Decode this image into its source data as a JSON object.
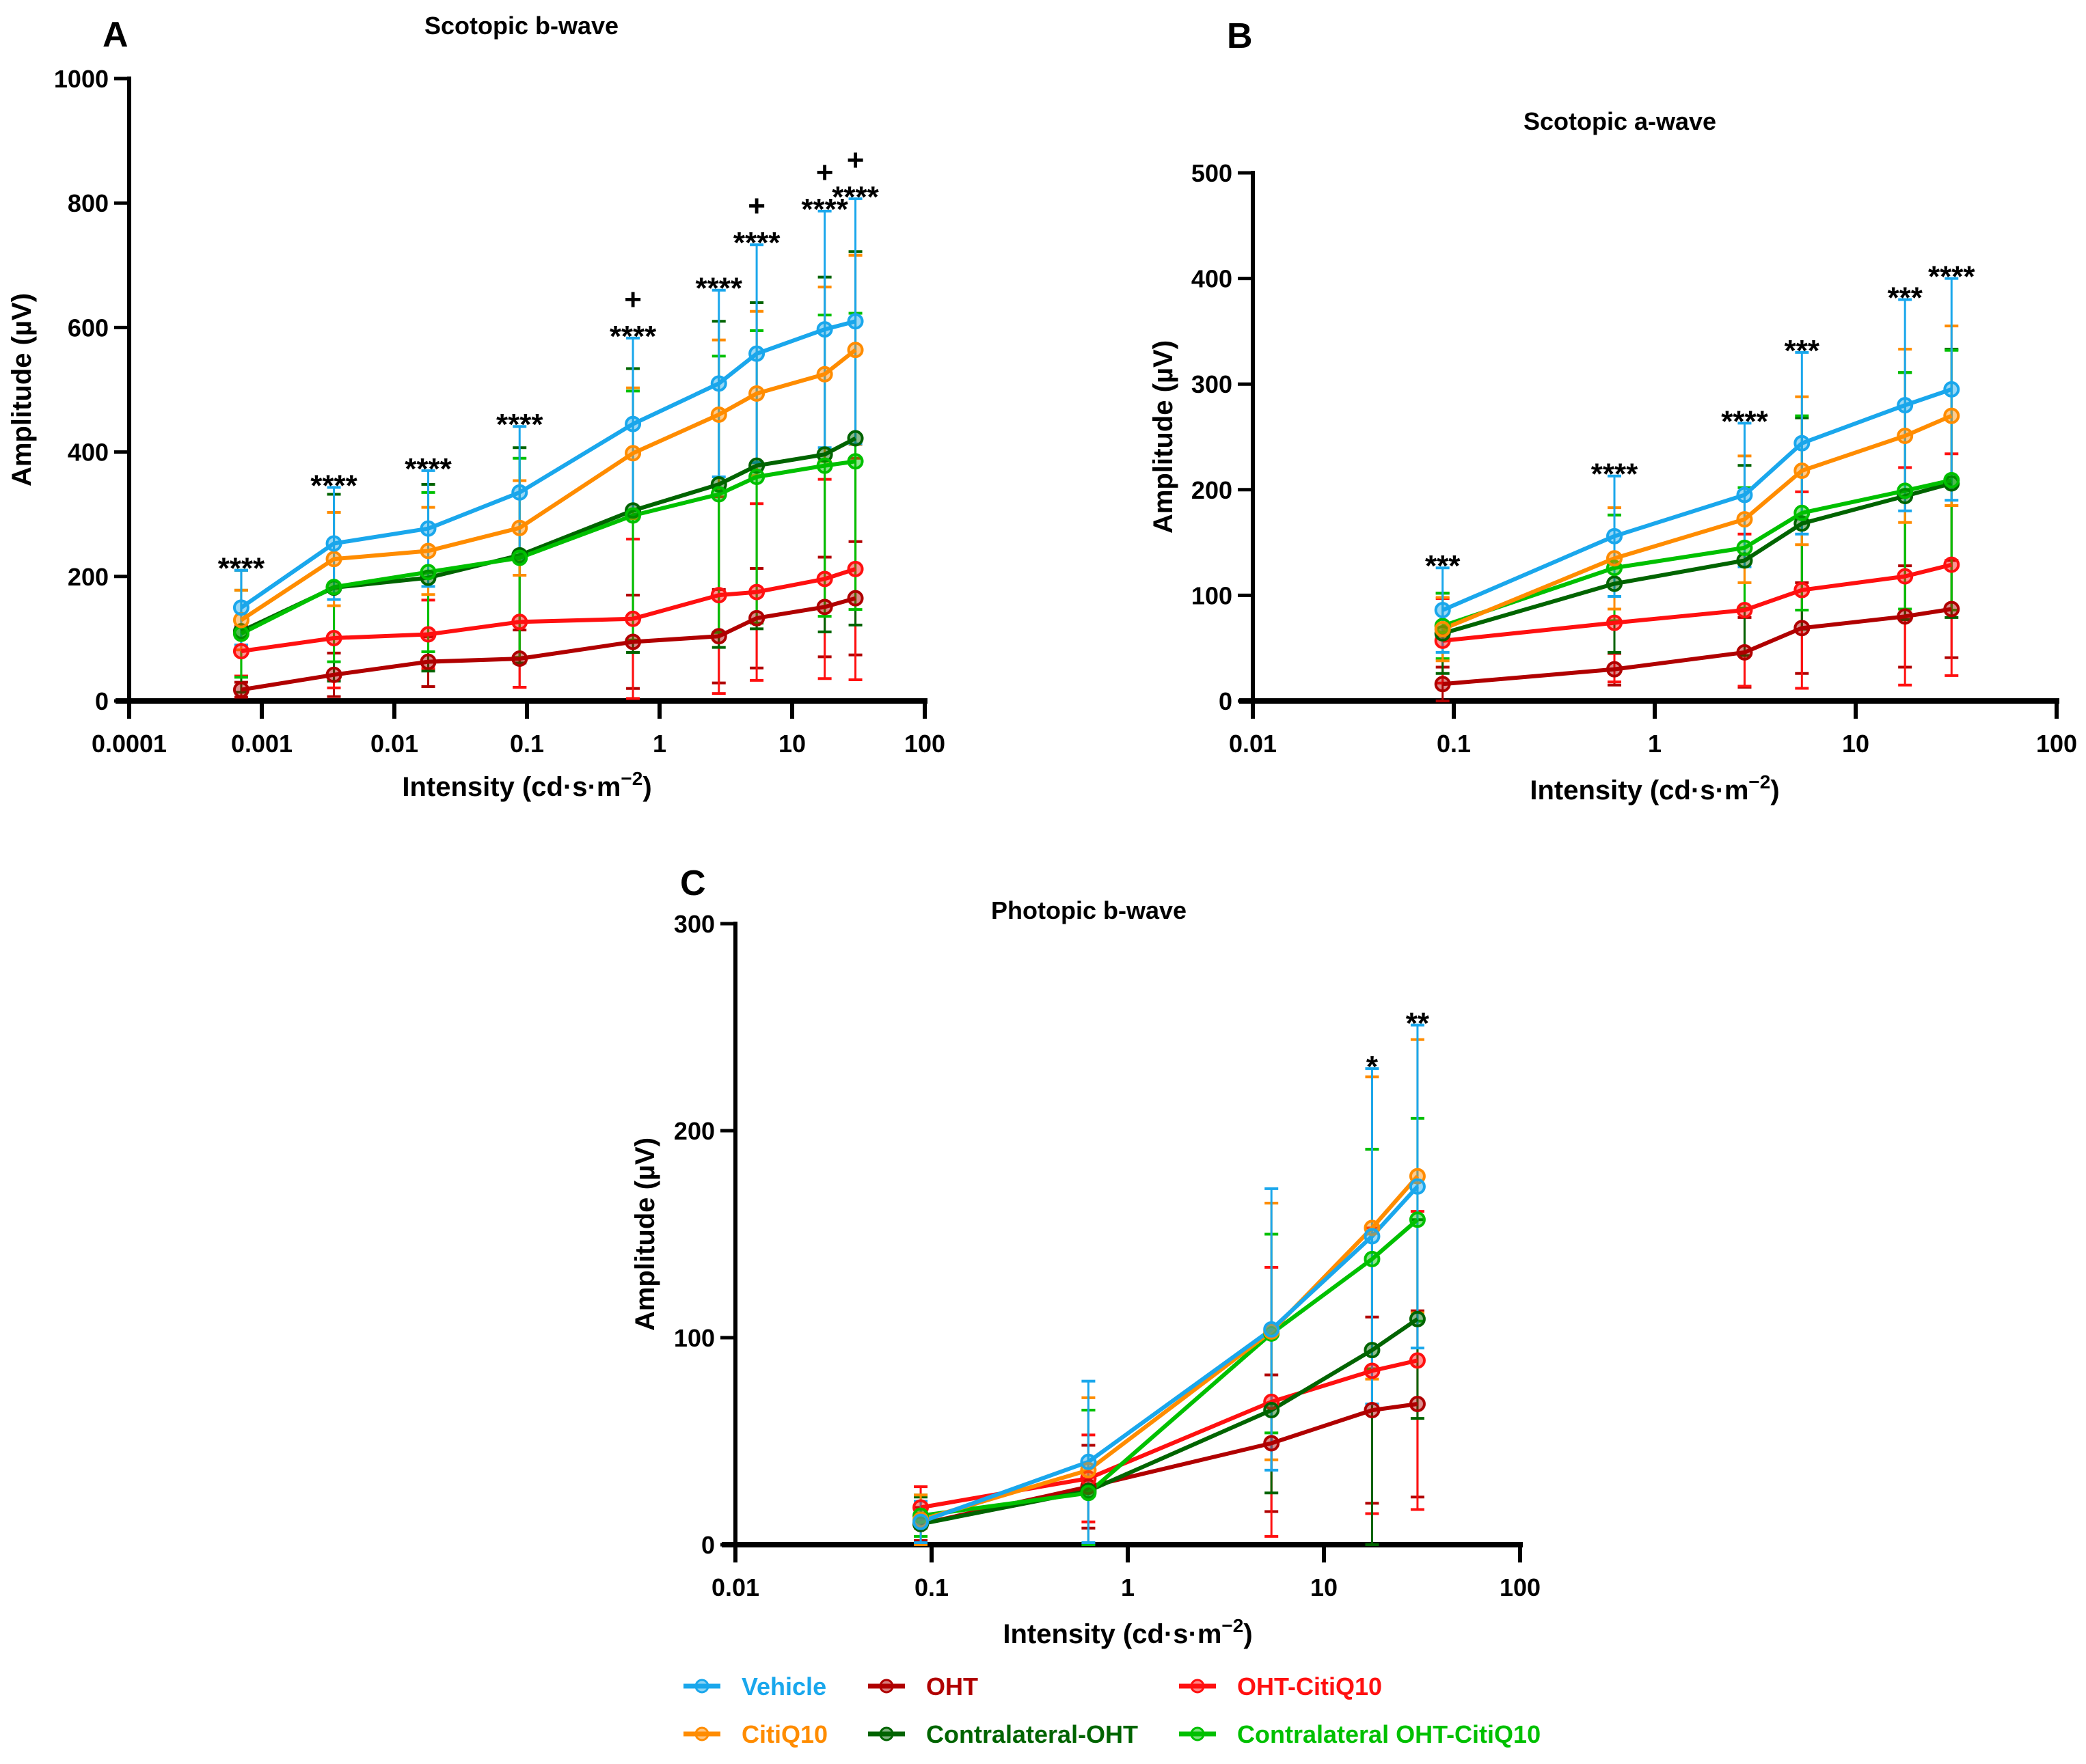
{
  "figure": {
    "panels": [
      "A",
      "B",
      "C"
    ]
  },
  "legend": {
    "items": [
      {
        "name": "Vehicle",
        "color": "#1AA7EC"
      },
      {
        "name": "OHT",
        "color": "#B00000"
      },
      {
        "name": "OHT-CitiQ10",
        "color": "#FF1010"
      },
      {
        "name": "CitiQ10",
        "color": "#FF8C00"
      },
      {
        "name": "Contralateral-OHT",
        "color": "#006400"
      },
      {
        "name": "Contralateral OHT-CitiQ10",
        "color": "#00C000"
      }
    ]
  },
  "chart_data": [
    {
      "panel": "A",
      "type": "line",
      "title": "Scotopic b-wave",
      "xlabel": "Intensity (cd·s·m",
      "xlabel_sup": "−2",
      "xlabel_close": ")",
      "ylabel": "Amplitude (µV)",
      "xscale": "log",
      "xlim": [
        0.0001,
        100
      ],
      "ylim": [
        0,
        1000
      ],
      "xticks": [
        0.0001,
        0.001,
        0.01,
        0.1,
        1,
        10,
        100
      ],
      "xtick_labels": [
        "0.0001",
        "0.001",
        "0.01",
        "0.1",
        "1",
        "10",
        "100"
      ],
      "yticks": [
        0,
        200,
        400,
        600,
        800,
        1000
      ],
      "ytick_labels": [
        "0",
        "200",
        "400",
        "600",
        "800",
        "1000"
      ],
      "x": [
        0.0007,
        0.0035,
        0.018,
        0.088,
        0.63,
        2.8,
        5.4,
        17.6,
        30
      ],
      "series": [
        {
          "name": "Vehicle",
          "values": [
            150,
            253,
            277,
            335,
            445,
            510,
            558,
            597,
            610
          ],
          "err": [
            60,
            90,
            93,
            106,
            138,
            150,
            175,
            190,
            197
          ]
        },
        {
          "name": "CitiQ10",
          "values": [
            130,
            228,
            241,
            278,
            398,
            460,
            494,
            525,
            564
          ],
          "err": [
            48,
            75,
            70,
            76,
            105,
            120,
            132,
            140,
            152
          ]
        },
        {
          "name": "Contralateral-OHT",
          "values": [
            112,
            182,
            198,
            234,
            306,
            348,
            378,
            396,
            422
          ],
          "err": [
            98,
            150,
            150,
            173,
            228,
            262,
            262,
            285,
            300
          ]
        },
        {
          "name": "Contralateral OHT-CitiQ10",
          "values": [
            108,
            183,
            207,
            230,
            298,
            332,
            360,
            378,
            385
          ],
          "err": [
            70,
            120,
            128,
            160,
            200,
            222,
            235,
            242,
            238
          ]
        },
        {
          "name": "OHT-CitiQ10",
          "values": [
            80,
            101,
            107,
            127,
            132,
            170,
            175,
            196,
            212
          ],
          "err": [
            40,
            80,
            55,
            105,
            128,
            158,
            142,
            160,
            178
          ]
        },
        {
          "name": "OHT",
          "values": [
            18,
            42,
            63,
            68,
            95,
            104,
            133,
            151,
            165
          ],
          "err": [
            12,
            35,
            40,
            46,
            75,
            75,
            80,
            80,
            91
          ]
        }
      ],
      "annotations": [
        {
          "x": 0.0007,
          "text": "****"
        },
        {
          "x": 0.0035,
          "text": "****"
        },
        {
          "x": 0.018,
          "text": "****"
        },
        {
          "x": 0.088,
          "text": "****"
        },
        {
          "x": 0.63,
          "text": "****",
          "plus": "+"
        },
        {
          "x": 2.8,
          "text": "****"
        },
        {
          "x": 5.4,
          "text": "****",
          "plus": "+"
        },
        {
          "x": 17.6,
          "text": "****",
          "plus": "+"
        },
        {
          "x": 30,
          "text": "****",
          "plus": "+"
        }
      ]
    },
    {
      "panel": "B",
      "type": "line",
      "title": "Scotopic a-wave",
      "xlabel": "Intensity (cd·s·m",
      "xlabel_sup": "−2",
      "xlabel_close": ")",
      "ylabel": "Amplitude (µV)",
      "xscale": "log",
      "xlim": [
        0.01,
        100
      ],
      "ylim": [
        0,
        500
      ],
      "xticks": [
        0.01,
        0.1,
        1,
        10,
        100
      ],
      "xtick_labels": [
        "0.01",
        "0.1",
        "1",
        "10",
        "100"
      ],
      "yticks": [
        0,
        100,
        200,
        300,
        400,
        500
      ],
      "ytick_labels": [
        "0",
        "100",
        "200",
        "300",
        "400",
        "500"
      ],
      "x": [
        0.088,
        0.63,
        2.8,
        5.4,
        17.6,
        30
      ],
      "series": [
        {
          "name": "Vehicle",
          "values": [
            86,
            156,
            195,
            244,
            280,
            295
          ],
          "err": [
            40,
            57,
            68,
            86,
            100,
            105
          ]
        },
        {
          "name": "CitiQ10",
          "values": [
            68,
            135,
            172,
            218,
            251,
            270
          ],
          "err": [
            30,
            48,
            60,
            70,
            82,
            85
          ]
        },
        {
          "name": "Contralateral-OHT",
          "values": [
            64,
            111,
            133,
            168,
            194,
            206
          ],
          "err": [
            38,
            65,
            90,
            100,
            117,
            127
          ]
        },
        {
          "name": "Contralateral OHT-CitiQ10",
          "values": [
            71,
            126,
            145,
            178,
            199,
            209
          ],
          "err": [
            31,
            50,
            57,
            92,
            112,
            123
          ]
        },
        {
          "name": "OHT-CitiQ10",
          "values": [
            57,
            74,
            86,
            105,
            118,
            129
          ],
          "err": [
            40,
            56,
            72,
            93,
            103,
            105
          ]
        },
        {
          "name": "OHT",
          "values": [
            16,
            30,
            46,
            69,
            80,
            87
          ],
          "err": [
            16,
            15,
            33,
            43,
            48,
            46
          ]
        }
      ],
      "annotations": [
        {
          "x": 0.088,
          "text": "***"
        },
        {
          "x": 0.63,
          "text": "****"
        },
        {
          "x": 2.8,
          "text": "****"
        },
        {
          "x": 5.4,
          "text": "***"
        },
        {
          "x": 17.6,
          "text": "***"
        },
        {
          "x": 30,
          "text": "****"
        }
      ]
    },
    {
      "panel": "C",
      "type": "line",
      "title": "Photopic b-wave",
      "xlabel": "Intensity (cd·s·m",
      "xlabel_sup": "−2",
      "xlabel_close": ")",
      "ylabel": "Amplitude (µV)",
      "xscale": "log",
      "xlim": [
        0.01,
        100
      ],
      "ylim": [
        0,
        300
      ],
      "xticks": [
        0.01,
        0.1,
        1,
        10,
        100
      ],
      "xtick_labels": [
        "0.01",
        "0.1",
        "1",
        "10",
        "100"
      ],
      "yticks": [
        0,
        100,
        200,
        300
      ],
      "ytick_labels": [
        "0",
        "100",
        "200",
        "300"
      ],
      "x": [
        0.088,
        0.63,
        5.4,
        17.6,
        30
      ],
      "series": [
        {
          "name": "Vehicle",
          "values": [
            11,
            40,
            104,
            149,
            173
          ],
          "err": [
            10,
            39,
            68,
            81,
            78
          ]
        },
        {
          "name": "CitiQ10",
          "values": [
            12,
            36,
            103,
            153,
            178
          ],
          "err": [
            12,
            35,
            62,
            73,
            66
          ]
        },
        {
          "name": "Contralateral-OHT",
          "values": [
            10,
            26,
            65,
            94,
            109
          ],
          "err": [
            13,
            39,
            40,
            97,
            48
          ]
        },
        {
          "name": "Contralateral OHT-CitiQ10",
          "values": [
            14,
            25,
            102,
            138,
            157
          ],
          "err": [
            10,
            40,
            48,
            53,
            49
          ]
        },
        {
          "name": "OHT-CitiQ10",
          "values": [
            18,
            32,
            69,
            84,
            89
          ],
          "err": [
            10,
            21,
            65,
            69,
            72
          ]
        },
        {
          "name": "OHT",
          "values": [
            10,
            28,
            49,
            65,
            68
          ],
          "err": [
            8,
            20,
            33,
            45,
            45
          ]
        }
      ],
      "annotations": [
        {
          "x": 17.6,
          "text": "*"
        },
        {
          "x": 30,
          "text": "**"
        }
      ]
    }
  ]
}
